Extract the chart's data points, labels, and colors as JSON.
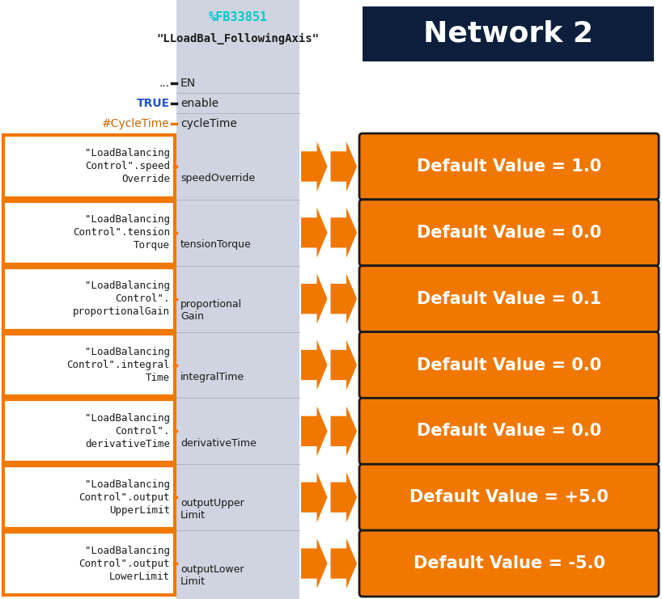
{
  "title_fb": "%FB33851",
  "title_fb_color": "#00CCCC",
  "title_name": "\"LLoadBal_FollowingAxis\"",
  "title_name_color": "#1a1a1a",
  "network_label": "Network 2",
  "network_bg": "#0d1f3c",
  "network_text_color": "#ffffff",
  "bg_color": "#ffffff",
  "plc_block_bg": "#d0d4e0",
  "fixed_inputs": [
    {
      "label": "...",
      "label_color": "#1a1a1a",
      "pin": "EN",
      "line_color": "#1a1a1a"
    },
    {
      "label": "TRUE",
      "label_color": "#2255cc",
      "pin": "enable",
      "line_color": "#1a1a1a"
    },
    {
      "label": "#CycleTime",
      "label_color": "#cc6600",
      "pin": "cycleTime",
      "line_color": "#E07800"
    }
  ],
  "rows": [
    {
      "left_lines": [
        "\"LoadBalancing",
        "Control\".speed",
        "Override"
      ],
      "pin": "speedOverride",
      "default_value": "Default Value = 1.0"
    },
    {
      "left_lines": [
        "\"LoadBalancing",
        "Control\".tension",
        "Torque"
      ],
      "pin": "tensionTorque",
      "default_value": "Default Value = 0.0"
    },
    {
      "left_lines": [
        "\"LoadBalancing",
        "Control\".",
        "proportionalGain"
      ],
      "pin": "proportional\nGain",
      "default_value": "Default Value = 0.1"
    },
    {
      "left_lines": [
        "\"LoadBalancing",
        "Control\".integral",
        "Time"
      ],
      "pin": "integralTime",
      "default_value": "Default Value = 0.0"
    },
    {
      "left_lines": [
        "\"LoadBalancing",
        "Control\".",
        "derivativeTime"
      ],
      "pin": "derivativeTime",
      "default_value": "Default Value = 0.0"
    },
    {
      "left_lines": [
        "\"LoadBalancing",
        "Control\".output",
        "UpperLimit"
      ],
      "pin": "outputUpper\nLimit",
      "default_value": "Default Value = +5.0"
    },
    {
      "left_lines": [
        "\"LoadBalancing",
        "Control\".output",
        "LowerLimit"
      ],
      "pin": "outputLower\nLimit",
      "default_value": "Default Value = -5.0"
    }
  ],
  "orange_color": "#F07800",
  "left_box_border": "#F07800",
  "line_color": "#1a1a1a"
}
